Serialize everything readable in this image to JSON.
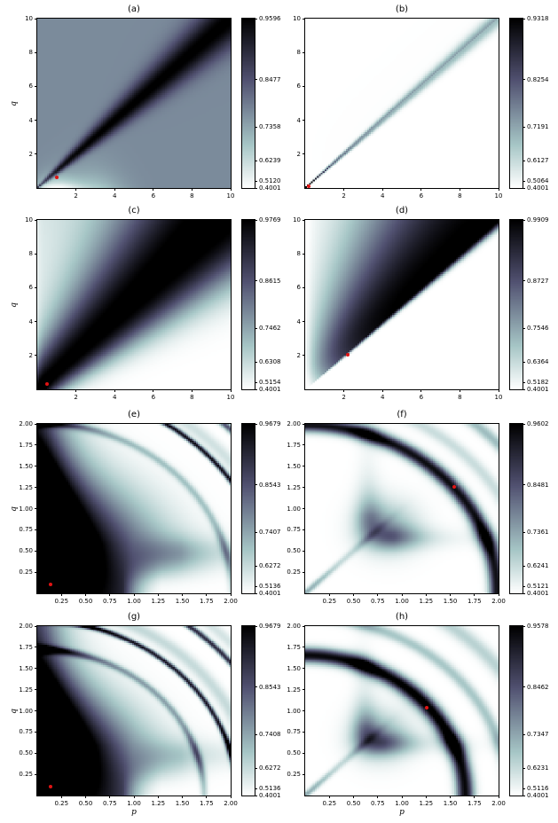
{
  "figure": {
    "background": "#ffffff",
    "marker_color": "#e01414"
  },
  "chart_data": {
    "type": "heatmap",
    "layout": "4 rows x 2 columns of pseudocolor maps with individual colorbars",
    "colormap": {
      "style": "bone_r (white -> pale teal -> slate blue -> black)",
      "norm": "quadratic (PowerNorm gamma=2)",
      "vmin": 0.4001
    },
    "xlabel": "p",
    "ylabel": "q",
    "panels": [
      {
        "id": "a",
        "title": "(a)",
        "x_range": [
          0,
          10
        ],
        "y_range": [
          0,
          10
        ],
        "x_ticks": [
          2,
          4,
          6,
          8,
          10
        ],
        "y_ticks": [
          2,
          4,
          6,
          8,
          10
        ],
        "tick_decimals": 0,
        "ylabel": "q",
        "xlabel": null,
        "colorbar_ticks": [
          0.9596,
          0.8477,
          0.7358,
          0.6239,
          0.512,
          0.4001
        ],
        "value_range": [
          0.4001,
          0.9596
        ],
        "marker": {
          "p": 1.0,
          "q": 0.65
        },
        "pattern": "a",
        "description": "slate background with dark ridge along p=q; light pocket below diagonal near origin"
      },
      {
        "id": "b",
        "title": "(b)",
        "x_range": [
          0,
          10
        ],
        "y_range": [
          0,
          10
        ],
        "x_ticks": [
          2,
          4,
          6,
          8,
          10
        ],
        "y_ticks": [
          2,
          4,
          6,
          8,
          10
        ],
        "tick_decimals": 0,
        "ylabel": null,
        "xlabel": null,
        "colorbar_ticks": [
          0.9318,
          0.8254,
          0.7191,
          0.6127,
          0.5064,
          0.4001
        ],
        "value_range": [
          0.4001,
          0.9318
        ],
        "marker": {
          "p": 0.2,
          "q": 0.1
        },
        "pattern": "b",
        "description": "white background; narrow dark ridge along p=q strongest near origin, fading toward (10,10); faint haze above diagonal"
      },
      {
        "id": "c",
        "title": "(c)",
        "x_range": [
          0,
          10
        ],
        "y_range": [
          0,
          10
        ],
        "x_ticks": [
          2,
          4,
          6,
          8,
          10
        ],
        "y_ticks": [
          2,
          4,
          6,
          8,
          10
        ],
        "tick_decimals": 0,
        "ylabel": "q",
        "xlabel": null,
        "colorbar_ticks": [
          0.9769,
          0.8615,
          0.7462,
          0.6308,
          0.5154,
          0.4001
        ],
        "value_range": [
          0.4001,
          0.9769
        ],
        "marker": {
          "p": 0.5,
          "q": 0.3
        },
        "pattern": "c",
        "description": "broad dark diagonal band widening with p+q; pale teal above diagonal; white below"
      },
      {
        "id": "d",
        "title": "(d)",
        "x_range": [
          0,
          10
        ],
        "y_range": [
          0,
          10
        ],
        "x_ticks": [
          2,
          4,
          6,
          8,
          10
        ],
        "y_ticks": [
          2,
          4,
          6,
          8,
          10
        ],
        "tick_decimals": 0,
        "ylabel": null,
        "xlabel": null,
        "colorbar_ticks": [
          0.9909,
          0.8727,
          0.7546,
          0.6364,
          0.5182,
          0.4001
        ],
        "value_range": [
          0.4001,
          0.9909
        ],
        "marker": {
          "p": 2.2,
          "q": 2.05
        },
        "pattern": "d",
        "description": "dark band on/above diagonal widening toward (10,10); white below diagonal; pale teal near left edge"
      },
      {
        "id": "e",
        "title": "(e)",
        "x_range": [
          0,
          2
        ],
        "y_range": [
          0,
          2
        ],
        "x_ticks": [
          0.25,
          0.5,
          0.75,
          1.0,
          1.25,
          1.5,
          1.75,
          2.0
        ],
        "y_ticks": [
          0.25,
          0.5,
          0.75,
          1.0,
          1.25,
          1.5,
          1.75,
          2.0
        ],
        "tick_decimals": 2,
        "ylabel": "q",
        "xlabel": null,
        "colorbar_ticks": [
          0.9679,
          0.8543,
          0.7407,
          0.6272,
          0.5136,
          0.4001
        ],
        "value_range": [
          0.4001,
          0.9679
        ],
        "marker": {
          "p": 0.14,
          "q": 0.1
        },
        "pattern": "e",
        "description": "dark lobe filling lower-left; alternating white/teal circular arcs with thin dark rings (r ~ 2.0-2.8) toward upper-right corner"
      },
      {
        "id": "f",
        "title": "(f)",
        "x_range": [
          0,
          2
        ],
        "y_range": [
          0,
          2
        ],
        "x_ticks": [
          0.25,
          0.5,
          0.75,
          1.0,
          1.25,
          1.5,
          1.75,
          2.0
        ],
        "y_ticks": [
          0.25,
          0.5,
          0.75,
          1.0,
          1.25,
          1.5,
          1.75,
          2.0
        ],
        "tick_decimals": 2,
        "ylabel": null,
        "xlabel": null,
        "colorbar_ticks": [
          0.9602,
          0.8481,
          0.7361,
          0.6241,
          0.5121,
          0.4001
        ],
        "value_range": [
          0.4001,
          0.9602
        ],
        "marker": {
          "p": 1.54,
          "q": 1.26
        },
        "pattern": "f",
        "description": "mostly white; faint slate Y-shaped ridge (diagonal needle from origin, blob near (0.85,0.8), arms along p~0.66 and q~0.66); strong dark arc at r~2.0 with marker on it; teal/slate arcs beyond"
      },
      {
        "id": "g",
        "title": "(g)",
        "x_range": [
          0,
          2
        ],
        "y_range": [
          0,
          2
        ],
        "x_ticks": [
          0.25,
          0.5,
          0.75,
          1.0,
          1.25,
          1.5,
          1.75,
          2.0
        ],
        "y_ticks": [
          0.25,
          0.5,
          0.75,
          1.0,
          1.25,
          1.5,
          1.75,
          2.0
        ],
        "tick_decimals": 2,
        "ylabel": "q",
        "xlabel": "p",
        "colorbar_ticks": [
          0.9679,
          0.8543,
          0.7408,
          0.6272,
          0.5136,
          0.4001
        ],
        "value_range": [
          0.4001,
          0.9679
        ],
        "marker": {
          "p": 0.14,
          "q": 0.1
        },
        "pattern": "g",
        "description": "like (e) with tighter ring spacing: dark lobe lower-left, rings at r ~ 1.74, 2.08, 2.25, 2.56, 2.71, 2.93"
      },
      {
        "id": "h",
        "title": "(h)",
        "x_range": [
          0,
          2
        ],
        "y_range": [
          0,
          2
        ],
        "x_ticks": [
          0.25,
          0.5,
          0.75,
          1.0,
          1.25,
          1.5,
          1.75,
          2.0
        ],
        "y_ticks": [
          0.25,
          0.5,
          0.75,
          1.0,
          1.25,
          1.5,
          1.75,
          2.0
        ],
        "tick_decimals": 2,
        "ylabel": null,
        "xlabel": "p",
        "colorbar_ticks": [
          0.9578,
          0.8462,
          0.7347,
          0.6231,
          0.5116,
          0.4001
        ],
        "value_range": [
          0.4001,
          0.9578
        ],
        "marker": {
          "p": 1.26,
          "q": 1.04
        },
        "pattern": "h",
        "description": "like (f) with arcs shifted inward: dark arc at r~1.67 with marker on it, slate arc r~2.1, teal band r~2.5, dark corner r~2.9"
      }
    ]
  }
}
